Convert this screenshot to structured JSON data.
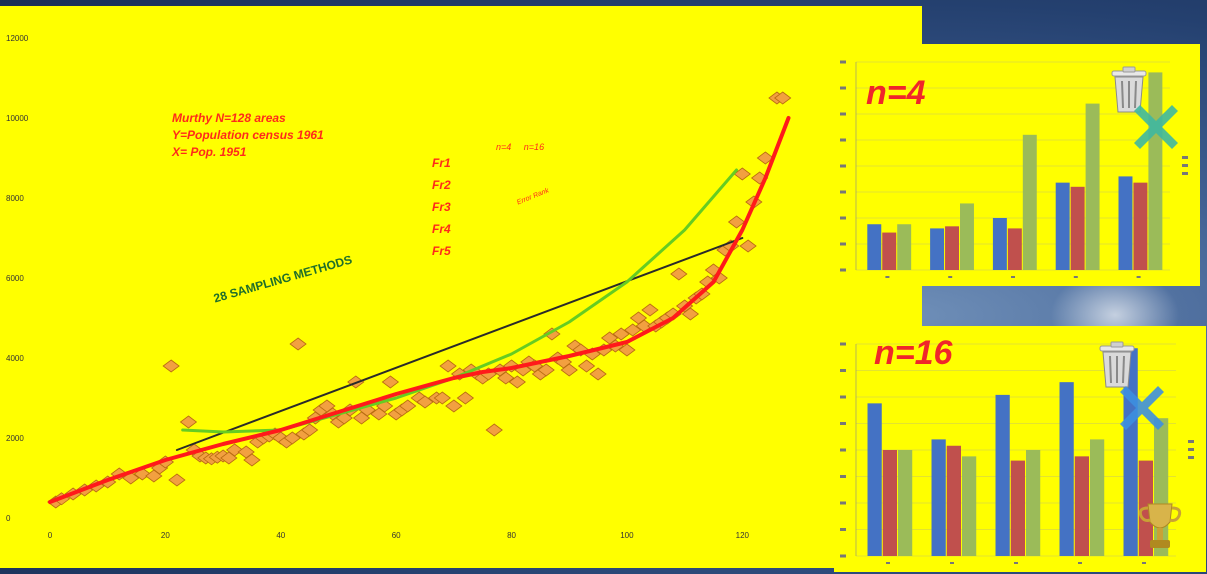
{
  "notes": {
    "line1": "Murthy N=128 areas",
    "line2": "Y=Population census 1961",
    "line3": "X= Pop. 1951"
  },
  "methods_label": "28 SAMPLING METHODS",
  "fr_labels": [
    "Fr1",
    "Fr2",
    "Fr3",
    "Fr4",
    "Fr5"
  ],
  "n_header": [
    "n=4",
    "n=16"
  ],
  "scribble": "Error Rank",
  "icons": {
    "trash": "trash-icon",
    "cross": "cross-icon",
    "trophy": "trophy-icon"
  },
  "chart_data": [
    {
      "type": "scatter",
      "xlim": [
        0,
        130
      ],
      "ylim": [
        0,
        12000
      ],
      "xticks": [
        "0",
        "20",
        "40",
        "60",
        "80",
        "100",
        "120"
      ],
      "yticks": [
        "0",
        "2000",
        "4000",
        "6000",
        "8000",
        "10000",
        "12000"
      ],
      "points": [
        [
          1,
          400
        ],
        [
          2,
          480
        ],
        [
          4,
          600
        ],
        [
          6,
          700
        ],
        [
          8,
          800
        ],
        [
          10,
          900
        ],
        [
          12,
          1100
        ],
        [
          14,
          1000
        ],
        [
          16,
          1100
        ],
        [
          18,
          1050
        ],
        [
          19,
          1250
        ],
        [
          20,
          1400
        ],
        [
          21,
          3800
        ],
        [
          22,
          950
        ],
        [
          24,
          2400
        ],
        [
          25,
          1700
        ],
        [
          26,
          1550
        ],
        [
          27,
          1500
        ],
        [
          28,
          1480
        ],
        [
          29,
          1520
        ],
        [
          30,
          1550
        ],
        [
          31,
          1500
        ],
        [
          32,
          1700
        ],
        [
          34,
          1650
        ],
        [
          35,
          1450
        ],
        [
          36,
          1900
        ],
        [
          37,
          2000
        ],
        [
          38,
          2050
        ],
        [
          39,
          2100
        ],
        [
          40,
          2000
        ],
        [
          41,
          1900
        ],
        [
          42,
          2000
        ],
        [
          43,
          4350
        ],
        [
          44,
          2100
        ],
        [
          45,
          2200
        ],
        [
          46,
          2500
        ],
        [
          47,
          2700
        ],
        [
          48,
          2800
        ],
        [
          49,
          2600
        ],
        [
          50,
          2400
        ],
        [
          51,
          2500
        ],
        [
          52,
          2700
        ],
        [
          53,
          3400
        ],
        [
          54,
          2500
        ],
        [
          55,
          2700
        ],
        [
          57,
          2600
        ],
        [
          58,
          2800
        ],
        [
          59,
          3400
        ],
        [
          60,
          2600
        ],
        [
          61,
          2700
        ],
        [
          62,
          2800
        ],
        [
          64,
          3000
        ],
        [
          65,
          2900
        ],
        [
          67,
          3000
        ],
        [
          68,
          3000
        ],
        [
          69,
          3800
        ],
        [
          70,
          2800
        ],
        [
          71,
          3600
        ],
        [
          72,
          3000
        ],
        [
          73,
          3700
        ],
        [
          74,
          3600
        ],
        [
          75,
          3500
        ],
        [
          76,
          3600
        ],
        [
          77,
          2200
        ],
        [
          78,
          3700
        ],
        [
          79,
          3500
        ],
        [
          80,
          3800
        ],
        [
          81,
          3400
        ],
        [
          82,
          3700
        ],
        [
          83,
          3900
        ],
        [
          84,
          3800
        ],
        [
          85,
          3600
        ],
        [
          86,
          3700
        ],
        [
          87,
          4600
        ],
        [
          88,
          4000
        ],
        [
          89,
          3900
        ],
        [
          90,
          3700
        ],
        [
          91,
          4300
        ],
        [
          92,
          4200
        ],
        [
          93,
          3800
        ],
        [
          94,
          4100
        ],
        [
          95,
          3600
        ],
        [
          96,
          4200
        ],
        [
          97,
          4500
        ],
        [
          98,
          4300
        ],
        [
          99,
          4600
        ],
        [
          100,
          4200
        ],
        [
          101,
          4700
        ],
        [
          102,
          5000
        ],
        [
          103,
          4800
        ],
        [
          104,
          5200
        ],
        [
          105,
          4800
        ],
        [
          106,
          4900
        ],
        [
          107,
          5000
        ],
        [
          108,
          5100
        ],
        [
          109,
          6100
        ],
        [
          110,
          5300
        ],
        [
          111,
          5100
        ],
        [
          112,
          5500
        ],
        [
          113,
          5600
        ],
        [
          114,
          5900
        ],
        [
          115,
          6200
        ],
        [
          116,
          6000
        ],
        [
          117,
          6700
        ],
        [
          118,
          6800
        ],
        [
          119,
          7400
        ],
        [
          120,
          8600
        ],
        [
          121,
          6800
        ],
        [
          122,
          7900
        ],
        [
          123,
          8500
        ],
        [
          124,
          9000
        ],
        [
          126,
          10500
        ],
        [
          127,
          10500
        ]
      ],
      "series": [
        {
          "kind": "linear",
          "color": "#2a2a2a",
          "points": [
            [
              22,
              1700
            ],
            [
              120,
              7000
            ]
          ]
        },
        {
          "kind": "exponential",
          "color": "#66cc22",
          "points": [
            [
              23,
              2200
            ],
            [
              30,
              2150
            ],
            [
              40,
              2200
            ],
            [
              50,
              2600
            ],
            [
              60,
              3000
            ],
            [
              70,
              3500
            ],
            [
              80,
              4100
            ],
            [
              90,
              4900
            ],
            [
              100,
              5900
            ],
            [
              110,
              7200
            ],
            [
              119,
              8700
            ]
          ]
        },
        {
          "kind": "polynomial",
          "color": "#ff1a1a",
          "points": [
            [
              0,
              400
            ],
            [
              10,
              950
            ],
            [
              20,
              1450
            ],
            [
              30,
              1850
            ],
            [
              40,
              2200
            ],
            [
              50,
              2650
            ],
            [
              60,
              3100
            ],
            [
              70,
              3500
            ],
            [
              75,
              3650
            ],
            [
              80,
              3750
            ],
            [
              90,
              4050
            ],
            [
              100,
              4400
            ],
            [
              108,
              5000
            ],
            [
              115,
              5900
            ],
            [
              120,
              7200
            ],
            [
              124,
              8500
            ],
            [
              128,
              10000
            ]
          ]
        }
      ]
    },
    {
      "type": "bar",
      "title": "n=4",
      "ylim": [
        0,
        1
      ],
      "series_colors": [
        "#4472c4",
        "#c0504d",
        "#9bbb59"
      ],
      "groups": [
        [
          0.22,
          0.18,
          0.22
        ],
        [
          0.2,
          0.21,
          0.32
        ],
        [
          0.25,
          0.2,
          0.65
        ],
        [
          0.42,
          0.4,
          0.8
        ],
        [
          0.45,
          0.42,
          0.95
        ]
      ]
    },
    {
      "type": "bar",
      "title": "n=16",
      "ylim": [
        0,
        1
      ],
      "series_colors": [
        "#4472c4",
        "#c0504d",
        "#9bbb59"
      ],
      "groups": [
        [
          0.72,
          0.5,
          0.5
        ],
        [
          0.55,
          0.52,
          0.47
        ],
        [
          0.76,
          0.45,
          0.5
        ],
        [
          0.82,
          0.47,
          0.55
        ],
        [
          0.98,
          0.45,
          0.65
        ]
      ]
    }
  ]
}
